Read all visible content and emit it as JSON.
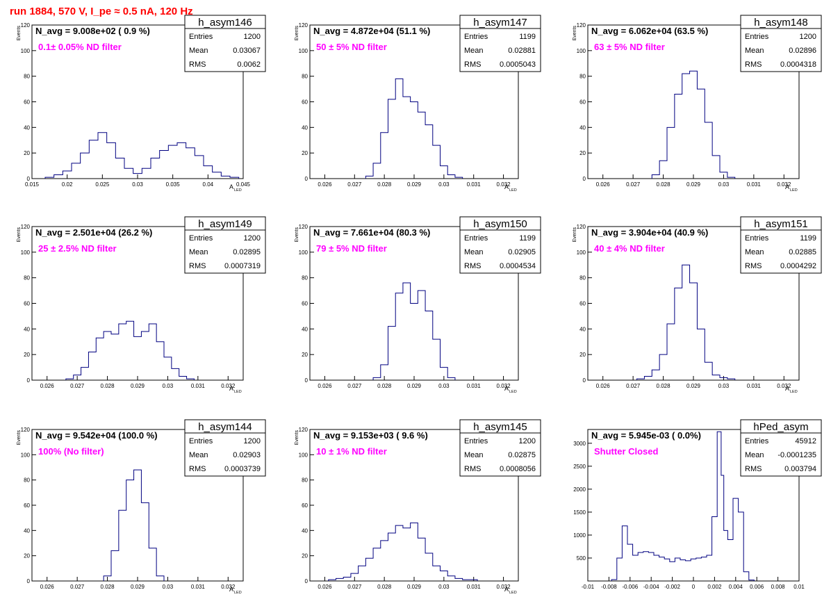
{
  "page": {
    "run_title": "run 1884,   570 V, I_pe ≈ 0.5 nA, 120 Hz"
  },
  "colors": {
    "histogram_line": "#000080",
    "annotation": "#ff00ff",
    "run_title": "#ff0000",
    "axis": "#000000"
  },
  "chart_data": [
    {
      "type": "bar",
      "histogram": true,
      "name": "h_asym146",
      "navg_label": "N_avg = 9.008e+02 ( 0.9 %)",
      "filter_label": "0.1± 0.05% ND filter",
      "stats": {
        "Entries": "1200",
        "Mean": "0.03067",
        "RMS": "0.0062"
      },
      "ylabel": "Events",
      "xlabel": "A",
      "xlabel_sub": "LED",
      "xlim": [
        0.015,
        0.045
      ],
      "ylim": [
        0,
        120
      ],
      "xticks": [
        "0.015",
        "0.02",
        "0.025",
        "0.03",
        "0.035",
        "0.04",
        "0.045"
      ],
      "xtick_values": [
        0.015,
        0.02,
        0.025,
        0.03,
        0.035,
        0.04,
        0.045
      ],
      "yticks": [
        "0",
        "20",
        "40",
        "60",
        "80",
        "100",
        "120"
      ],
      "ytick_values": [
        0,
        20,
        40,
        60,
        80,
        100,
        120
      ],
      "x": [
        0.0175,
        0.01875,
        0.02,
        0.02125,
        0.0225,
        0.02375,
        0.025,
        0.02625,
        0.0275,
        0.02875,
        0.03,
        0.03125,
        0.0325,
        0.03375,
        0.035,
        0.03625,
        0.0375,
        0.03875,
        0.04,
        0.04125,
        0.0425,
        0.04375
      ],
      "values": [
        1,
        3,
        6,
        12,
        20,
        30,
        36,
        28,
        16,
        8,
        4,
        8,
        16,
        22,
        26,
        28,
        24,
        18,
        10,
        5,
        2,
        1
      ]
    },
    {
      "type": "bar",
      "histogram": true,
      "name": "h_asym147",
      "navg_label": "N_avg = 4.872e+04 (51.1 %)",
      "filter_label": "50 ± 5% ND filter",
      "stats": {
        "Entries": "1199",
        "Mean": "0.02881",
        "RMS": "0.0005043"
      },
      "ylabel": "Events",
      "xlabel": "A",
      "xlabel_sub": "LED",
      "xlim": [
        0.0255,
        0.0325
      ],
      "ylim": [
        0,
        120
      ],
      "xticks": [
        "0.026",
        "0.027",
        "0.028",
        "0.029",
        "0.03",
        "0.031",
        "0.032"
      ],
      "xtick_values": [
        0.026,
        0.027,
        0.028,
        0.029,
        0.03,
        0.031,
        0.032
      ],
      "yticks": [
        "0",
        "20",
        "40",
        "60",
        "80",
        "100",
        "120"
      ],
      "ytick_values": [
        0,
        20,
        40,
        60,
        80,
        100,
        120
      ],
      "x": [
        0.0275,
        0.02775,
        0.028,
        0.02825,
        0.0285,
        0.02875,
        0.029,
        0.02925,
        0.0295,
        0.02975,
        0.03,
        0.03025,
        0.0305
      ],
      "values": [
        2,
        12,
        36,
        62,
        78,
        64,
        60,
        52,
        42,
        26,
        10,
        3,
        1
      ]
    },
    {
      "type": "bar",
      "histogram": true,
      "name": "h_asym148",
      "navg_label": "N_avg = 6.062e+04 (63.5 %)",
      "filter_label": "63 ± 5% ND filter",
      "stats": {
        "Entries": "1200",
        "Mean": "0.02896",
        "RMS": "0.0004318"
      },
      "ylabel": "Events",
      "xlabel": "A",
      "xlabel_sub": "LED",
      "xlim": [
        0.0255,
        0.0325
      ],
      "ylim": [
        0,
        120
      ],
      "xticks": [
        "0.026",
        "0.027",
        "0.028",
        "0.029",
        "0.03",
        "0.031",
        "0.032"
      ],
      "xtick_values": [
        0.026,
        0.027,
        0.028,
        0.029,
        0.03,
        0.031,
        0.032
      ],
      "yticks": [
        "0",
        "20",
        "40",
        "60",
        "80",
        "100",
        "120"
      ],
      "ytick_values": [
        0,
        20,
        40,
        60,
        80,
        100,
        120
      ],
      "x": [
        0.02775,
        0.028,
        0.02825,
        0.0285,
        0.02875,
        0.029,
        0.02925,
        0.0295,
        0.02975,
        0.03,
        0.03025
      ],
      "values": [
        3,
        14,
        40,
        66,
        82,
        84,
        70,
        44,
        18,
        5,
        1
      ]
    },
    {
      "type": "bar",
      "histogram": true,
      "name": "h_asym149",
      "navg_label": "N_avg = 2.501e+04 (26.2 %)",
      "filter_label": "25 ± 2.5% ND filter",
      "stats": {
        "Entries": "1200",
        "Mean": "0.02895",
        "RMS": "0.0007319"
      },
      "ylabel": "Events",
      "xlabel": "A",
      "xlabel_sub": "LED",
      "xlim": [
        0.0255,
        0.0325
      ],
      "ylim": [
        0,
        120
      ],
      "xticks": [
        "0.026",
        "0.027",
        "0.028",
        "0.029",
        "0.03",
        "0.031",
        "0.032"
      ],
      "xtick_values": [
        0.026,
        0.027,
        0.028,
        0.029,
        0.03,
        0.031,
        0.032
      ],
      "yticks": [
        "0",
        "20",
        "40",
        "60",
        "80",
        "100",
        "120"
      ],
      "ytick_values": [
        0,
        20,
        40,
        60,
        80,
        100,
        120
      ],
      "x": [
        0.02675,
        0.027,
        0.02725,
        0.0275,
        0.02775,
        0.028,
        0.02825,
        0.0285,
        0.02875,
        0.029,
        0.02925,
        0.0295,
        0.02975,
        0.03,
        0.03025,
        0.0305,
        0.03075
      ],
      "values": [
        1,
        4,
        10,
        22,
        33,
        38,
        36,
        44,
        46,
        34,
        38,
        44,
        30,
        18,
        9,
        3,
        1
      ]
    },
    {
      "type": "bar",
      "histogram": true,
      "name": "h_asym150",
      "navg_label": "N_avg = 7.661e+04 (80.3 %)",
      "filter_label": "79 ± 5% ND filter",
      "stats": {
        "Entries": "1199",
        "Mean": "0.02905",
        "RMS": "0.0004534"
      },
      "ylabel": "Events",
      "xlabel": "A",
      "xlabel_sub": "LED",
      "xlim": [
        0.0255,
        0.0325
      ],
      "ylim": [
        0,
        120
      ],
      "xticks": [
        "0.026",
        "0.027",
        "0.028",
        "0.029",
        "0.03",
        "0.031",
        "0.032"
      ],
      "xtick_values": [
        0.026,
        0.027,
        0.028,
        0.029,
        0.03,
        0.031,
        0.032
      ],
      "yticks": [
        "0",
        "20",
        "40",
        "60",
        "80",
        "100",
        "120"
      ],
      "ytick_values": [
        0,
        20,
        40,
        60,
        80,
        100,
        120
      ],
      "x": [
        0.02775,
        0.028,
        0.02825,
        0.0285,
        0.02875,
        0.029,
        0.02925,
        0.0295,
        0.02975,
        0.03,
        0.03025
      ],
      "values": [
        2,
        12,
        42,
        68,
        76,
        60,
        70,
        54,
        32,
        10,
        2
      ]
    },
    {
      "type": "bar",
      "histogram": true,
      "name": "h_asym151",
      "navg_label": "N_avg = 3.904e+04 (40.9 %)",
      "filter_label": "40 ± 4% ND filter",
      "stats": {
        "Entries": "1199",
        "Mean": "0.02885",
        "RMS": "0.0004292"
      },
      "ylabel": "Events",
      "xlabel": "A",
      "xlabel_sub": "LED",
      "xlim": [
        0.0255,
        0.0325
      ],
      "ylim": [
        0,
        120
      ],
      "xticks": [
        "0.026",
        "0.027",
        "0.028",
        "0.029",
        "0.03",
        "0.031",
        "0.032"
      ],
      "xtick_values": [
        0.026,
        0.027,
        0.028,
        0.029,
        0.03,
        0.031,
        0.032
      ],
      "yticks": [
        "0",
        "20",
        "40",
        "60",
        "80",
        "100",
        "120"
      ],
      "ytick_values": [
        0,
        20,
        40,
        60,
        80,
        100,
        120
      ],
      "x": [
        0.02725,
        0.0275,
        0.02775,
        0.028,
        0.02825,
        0.0285,
        0.02875,
        0.029,
        0.02925,
        0.0295,
        0.02975,
        0.03,
        0.03025
      ],
      "values": [
        1,
        3,
        8,
        20,
        44,
        72,
        90,
        76,
        40,
        14,
        4,
        2,
        1
      ]
    },
    {
      "type": "bar",
      "histogram": true,
      "name": "h_asym144",
      "navg_label": "N_avg = 9.542e+04 (100.0 %)",
      "filter_label": "100% (No filter)",
      "stats": {
        "Entries": "1200",
        "Mean": "0.02903",
        "RMS": "0.0003739"
      },
      "ylabel": "Events",
      "xlabel": "A",
      "xlabel_sub": "LED",
      "xlim": [
        0.0255,
        0.0325
      ],
      "ylim": [
        0,
        120
      ],
      "xticks": [
        "0.026",
        "0.027",
        "0.028",
        "0.029",
        "0.03",
        "0.031",
        "0.032"
      ],
      "xtick_values": [
        0.026,
        0.027,
        0.028,
        0.029,
        0.03,
        0.031,
        0.032
      ],
      "yticks": [
        "0",
        "20",
        "40",
        "60",
        "80",
        "100",
        "120"
      ],
      "ytick_values": [
        0,
        20,
        40,
        60,
        80,
        100,
        120
      ],
      "x": [
        0.028,
        0.02825,
        0.0285,
        0.02875,
        0.029,
        0.02925,
        0.0295,
        0.02975
      ],
      "values": [
        4,
        24,
        56,
        80,
        88,
        62,
        26,
        4
      ]
    },
    {
      "type": "bar",
      "histogram": true,
      "name": "h_asym145",
      "navg_label": "N_avg = 9.153e+03 ( 9.6 %)",
      "filter_label": "10 ± 1% ND filter",
      "stats": {
        "Entries": "1200",
        "Mean": "0.02875",
        "RMS": "0.0008056"
      },
      "ylabel": "Events",
      "xlabel": "A",
      "xlabel_sub": "LED",
      "xlim": [
        0.0255,
        0.0325
      ],
      "ylim": [
        0,
        120
      ],
      "xticks": [
        "0.026",
        "0.027",
        "0.028",
        "0.029",
        "0.03",
        "0.031",
        "0.032"
      ],
      "xtick_values": [
        0.026,
        0.027,
        0.028,
        0.029,
        0.03,
        0.031,
        0.032
      ],
      "yticks": [
        "0",
        "20",
        "40",
        "60",
        "80",
        "100",
        "120"
      ],
      "ytick_values": [
        0,
        20,
        40,
        60,
        80,
        100,
        120
      ],
      "x": [
        0.02625,
        0.0265,
        0.02675,
        0.027,
        0.02725,
        0.0275,
        0.02775,
        0.028,
        0.02825,
        0.0285,
        0.02875,
        0.029,
        0.02925,
        0.0295,
        0.02975,
        0.03,
        0.03025,
        0.0305,
        0.03075,
        0.031
      ],
      "values": [
        1,
        2,
        3,
        6,
        12,
        18,
        26,
        32,
        38,
        44,
        42,
        46,
        34,
        22,
        12,
        8,
        4,
        2,
        1,
        1
      ]
    },
    {
      "type": "bar",
      "histogram": true,
      "name": "hPed_asym",
      "navg_label": "N_avg = 5.945e-03 ( 0.0%)",
      "filter_label": "Shutter Closed",
      "stats": {
        "Entries": "45912",
        "Mean": "-0.0001235",
        "RMS": "0.003794"
      },
      "ylabel": "",
      "xlabel": "",
      "xlabel_sub": "",
      "xlim": [
        -0.01,
        0.01
      ],
      "ylim": [
        0,
        3300
      ],
      "xticks": [
        "-0.01",
        "-0.008",
        "-0.006",
        "-0.004",
        "-0.002",
        "0",
        "0.002",
        "0.004",
        "0.006",
        "0.008",
        "0.01"
      ],
      "xtick_values": [
        -0.01,
        -0.008,
        -0.006,
        -0.004,
        -0.002,
        0,
        0.002,
        0.004,
        0.006,
        0.008,
        0.01
      ],
      "yticks": [
        "500",
        "1000",
        "1500",
        "2000",
        "2500",
        "3000"
      ],
      "ytick_values": [
        500,
        1000,
        1500,
        2000,
        2500,
        3000
      ],
      "x": [
        -0.0075,
        -0.007,
        -0.0065,
        -0.006,
        -0.0055,
        -0.005,
        -0.0045,
        -0.004,
        -0.0035,
        -0.003,
        -0.0025,
        -0.002,
        -0.0015,
        -0.001,
        -0.0005,
        0,
        0.0005,
        0.001,
        0.0015,
        0.002,
        0.0025,
        0.00275,
        0.003,
        0.0035,
        0.004,
        0.0045,
        0.005,
        0.0055
      ],
      "values": [
        30,
        500,
        1200,
        800,
        560,
        620,
        640,
        620,
        560,
        520,
        480,
        420,
        500,
        460,
        440,
        480,
        500,
        520,
        560,
        1400,
        3250,
        2300,
        1100,
        900,
        1800,
        1500,
        200,
        20
      ]
    }
  ]
}
